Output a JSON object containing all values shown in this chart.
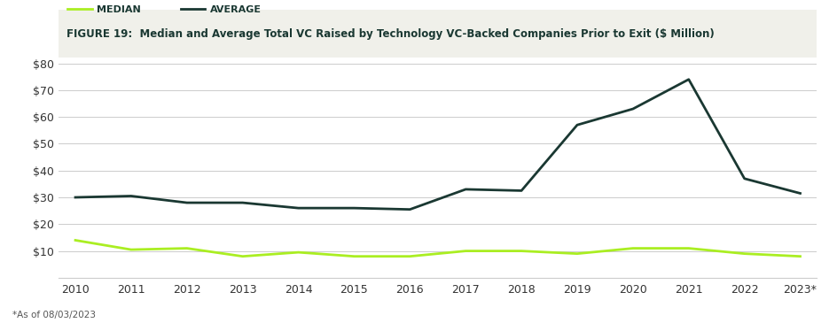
{
  "title": "FIGURE 19:  Median and Average Total VC Raised by Technology VC-Backed Companies Prior to Exit ($ Million)",
  "years": [
    "2010",
    "2011",
    "2012",
    "2013",
    "2014",
    "2015",
    "2016",
    "2017",
    "2018",
    "2019",
    "2020",
    "2021",
    "2022",
    "2023*"
  ],
  "median": [
    14,
    10.5,
    11,
    8,
    9.5,
    8,
    8,
    10,
    10,
    9,
    11,
    11,
    9,
    8
  ],
  "average": [
    30,
    30.5,
    28,
    28,
    26,
    26,
    25.5,
    33,
    32.5,
    57,
    63,
    74,
    37,
    31.5
  ],
  "median_color": "#aaee22",
  "average_color": "#1a3832",
  "background_color": "#ffffff",
  "title_area_color": "#f0f0ea",
  "ylim": [
    0,
    82
  ],
  "yticks": [
    10,
    20,
    30,
    40,
    50,
    60,
    70,
    80
  ],
  "ytick_labels": [
    "$10",
    "$20",
    "$30",
    "$40",
    "$50",
    "$60",
    "$70",
    "$80"
  ],
  "legend_median_label": "MEDIAN",
  "legend_average_label": "AVERAGE",
  "footnote": "*As of 08/03/2023",
  "line_width": 2.0,
  "title_fontsize": 8.5,
  "legend_fontsize": 8,
  "tick_fontsize": 9,
  "footnote_fontsize": 7.5,
  "title_color": "#1a3832",
  "tick_color": "#333333",
  "grid_color": "#cccccc"
}
